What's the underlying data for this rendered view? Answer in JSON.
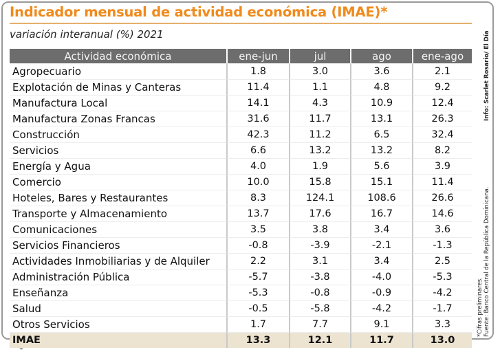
{
  "chart_data": {
    "type": "table",
    "title": "Indicador mensual de actividad económica (IMAE)*",
    "subtitle": "variación interanual (%) 2021",
    "columns": [
      "Actividad económica",
      "ene-jun",
      "jul",
      "ago",
      "ene-ago"
    ],
    "rows": [
      {
        "activity": "Agropecuario",
        "values": [
          "1.8",
          "3.0",
          "3.6",
          "2.1"
        ]
      },
      {
        "activity": "Explotación de Minas y Canteras",
        "values": [
          "11.4",
          "1.1",
          "4.8",
          "9.2"
        ]
      },
      {
        "activity": "Manufactura Local",
        "values": [
          "14.1",
          "4.3",
          "10.9",
          "12.4"
        ]
      },
      {
        "activity": "Manufactura Zonas Francas",
        "values": [
          "31.6",
          "11.7",
          "13.1",
          "26.3"
        ]
      },
      {
        "activity": "Construcción",
        "values": [
          "42.3",
          "11.2",
          "6.5",
          "32.4"
        ]
      },
      {
        "activity": "Servicios",
        "values": [
          "6.6",
          "13.2",
          "13.2",
          "8.2"
        ]
      },
      {
        "activity": "Energía y Agua",
        "values": [
          "4.0",
          "1.9",
          "5.6",
          "3.9"
        ]
      },
      {
        "activity": "Comercio",
        "values": [
          "10.0",
          "15.8",
          "15.1",
          "11.4"
        ]
      },
      {
        "activity": "Hoteles, Bares y Restaurantes",
        "values": [
          "8.3",
          "124.1",
          "108.6",
          "26.6"
        ]
      },
      {
        "activity": "Transporte y Almacenamiento",
        "values": [
          "13.7",
          "17.6",
          "16.7",
          "14.6"
        ]
      },
      {
        "activity": "Comunicaciones",
        "values": [
          "3.5",
          "3.8",
          "3.4",
          "3.6"
        ]
      },
      {
        "activity": "Servicios Financieros",
        "values": [
          "-0.8",
          "-3.9",
          "-2.1",
          "-1.3"
        ]
      },
      {
        "activity": "Actividades Inmobiliarias y de Alquiler",
        "values": [
          "2.2",
          "3.1",
          "3.4",
          "2.5"
        ]
      },
      {
        "activity": "Administración Pública",
        "values": [
          "-5.7",
          "-3.8",
          "-4.0",
          "-5.3"
        ]
      },
      {
        "activity": "Enseñanza",
        "values": [
          "-5.3",
          "-0.8",
          "-0.9",
          "-4.2"
        ]
      },
      {
        "activity": "Salud",
        "values": [
          "-0.5",
          "-5.8",
          "-4.2",
          "-1.7"
        ]
      },
      {
        "activity": "Otros Servicios",
        "values": [
          "1.7",
          "7.7",
          "9.1",
          "3.3"
        ]
      }
    ],
    "total": {
      "activity": "IMAE",
      "values": [
        "13.3",
        "12.1",
        "11.7",
        "13.0"
      ]
    }
  },
  "notes": {
    "credit": "Info: Scarlet Rosario/ El Día",
    "footnote_1": "*Cifras preliminares.",
    "footnote_2": "Fuente: Banco Central de la República Dominicana."
  },
  "colors": {
    "title": "#f08a1c",
    "header_bg": "#6d6d6d",
    "total_bg": "#ece3d1",
    "frame": "#9a9a9a"
  }
}
